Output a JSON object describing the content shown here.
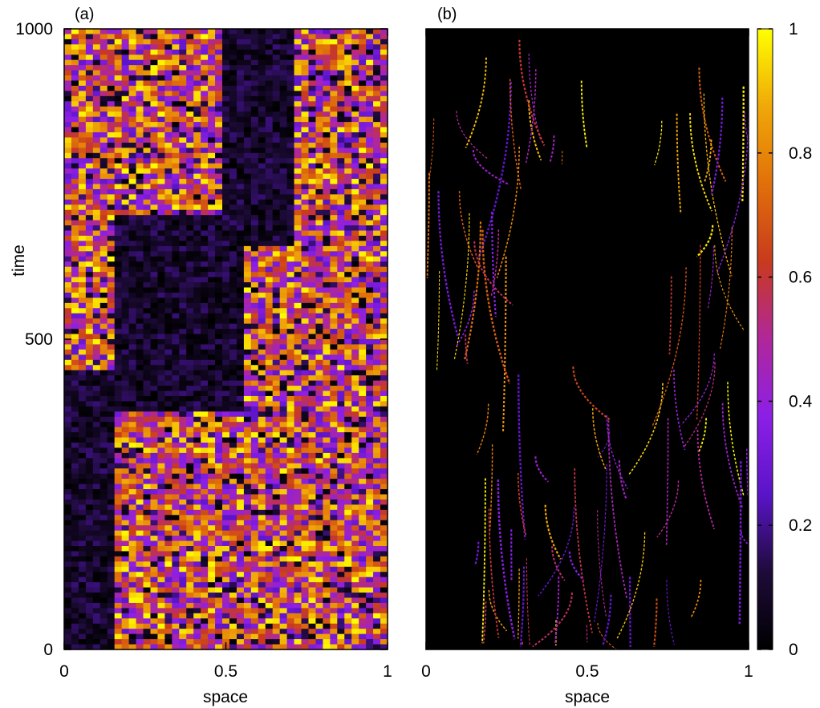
{
  "chart_data": [
    {
      "type": "heatmap",
      "panel_label": "(a)",
      "xlabel": "space",
      "ylabel": "time",
      "xlim": [
        0,
        1
      ],
      "ylim": [
        0,
        1000
      ],
      "x_ticks": [
        "0",
        "0.5",
        "1"
      ],
      "y_ticks": [
        "0",
        "500",
        "1000"
      ],
      "grid": false,
      "pattern": "coarse dense random bands",
      "regions": [
        {
          "description": "dark quiescent region near left edge, lower half",
          "x": [
            0.0,
            0.15
          ],
          "time": [
            0,
            450
          ]
        },
        {
          "description": "dark quiescent diagonal band",
          "x": [
            0.15,
            0.55
          ],
          "time": [
            380,
            700
          ]
        },
        {
          "description": "dark quiescent column at top center",
          "x": [
            0.5,
            0.7
          ],
          "time": [
            650,
            1000
          ]
        }
      ]
    },
    {
      "type": "heatmap",
      "panel_label": "(b)",
      "xlabel": "space",
      "xlim": [
        0,
        1
      ],
      "ylim": [
        0,
        1000
      ],
      "x_ticks": [
        "0",
        "0.5",
        "1"
      ],
      "grid": false,
      "pattern": "sparse fine filaments",
      "regions": [
        {
          "description": "dark quiescent region near left edge, lower half",
          "x": [
            0.0,
            0.15
          ],
          "time": [
            0,
            450
          ]
        },
        {
          "description": "dark quiescent triangle in upper middle",
          "x": [
            0.3,
            0.75
          ],
          "time": [
            460,
            780
          ]
        },
        {
          "description": "dark quiescent column at top center",
          "x": [
            0.5,
            0.7
          ],
          "time": [
            750,
            1000
          ]
        }
      ]
    }
  ],
  "colorbar": {
    "range": [
      0,
      1
    ],
    "tick_labels": [
      "0",
      "0.2",
      "0.4",
      "0.6",
      "0.8",
      "1"
    ],
    "stops": [
      "#000000",
      "#1e0b3a",
      "#5a14c8",
      "#8c1fe6",
      "#b0279a",
      "#c83a1e",
      "#e0700a",
      "#f0a808",
      "#ffff00"
    ]
  }
}
